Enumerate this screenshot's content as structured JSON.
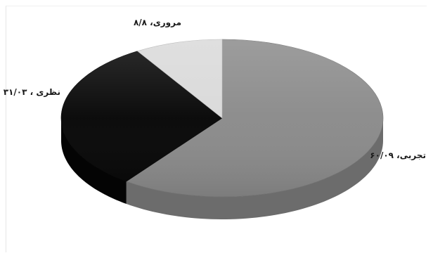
{
  "chart_data": {
    "type": "pie",
    "style": "3d",
    "slices": [
      {
        "label": "تجربی، ۶۰/۰۹",
        "value": 60.09,
        "color": "#8a8a8a"
      },
      {
        "label": "نظری ، ۳۱/۰۳",
        "value": 31.03,
        "color": "#050505"
      },
      {
        "label": "مروری، ۸/۸",
        "value": 8.8,
        "color": "#d9d9d9"
      }
    ],
    "legend": "none"
  }
}
